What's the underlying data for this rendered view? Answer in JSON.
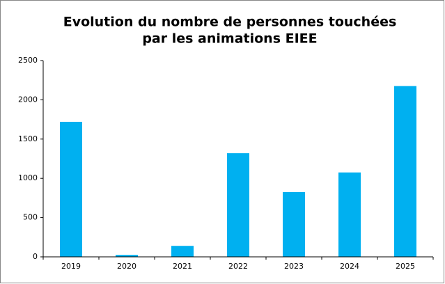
{
  "chart_data": {
    "type": "bar",
    "title": [
      "Evolution du nombre de personnes touchées",
      "par les animations EIEE"
    ],
    "categories": [
      "2019",
      "2020",
      "2021",
      "2022",
      "2023",
      "2024",
      "2025"
    ],
    "values": [
      1720,
      25,
      140,
      1320,
      825,
      1075,
      2175
    ],
    "color": "#00b0f0",
    "ylim": [
      0,
      2500
    ],
    "yticks": [
      0,
      500,
      1000,
      1500,
      2000,
      2500
    ],
    "grid": false
  }
}
